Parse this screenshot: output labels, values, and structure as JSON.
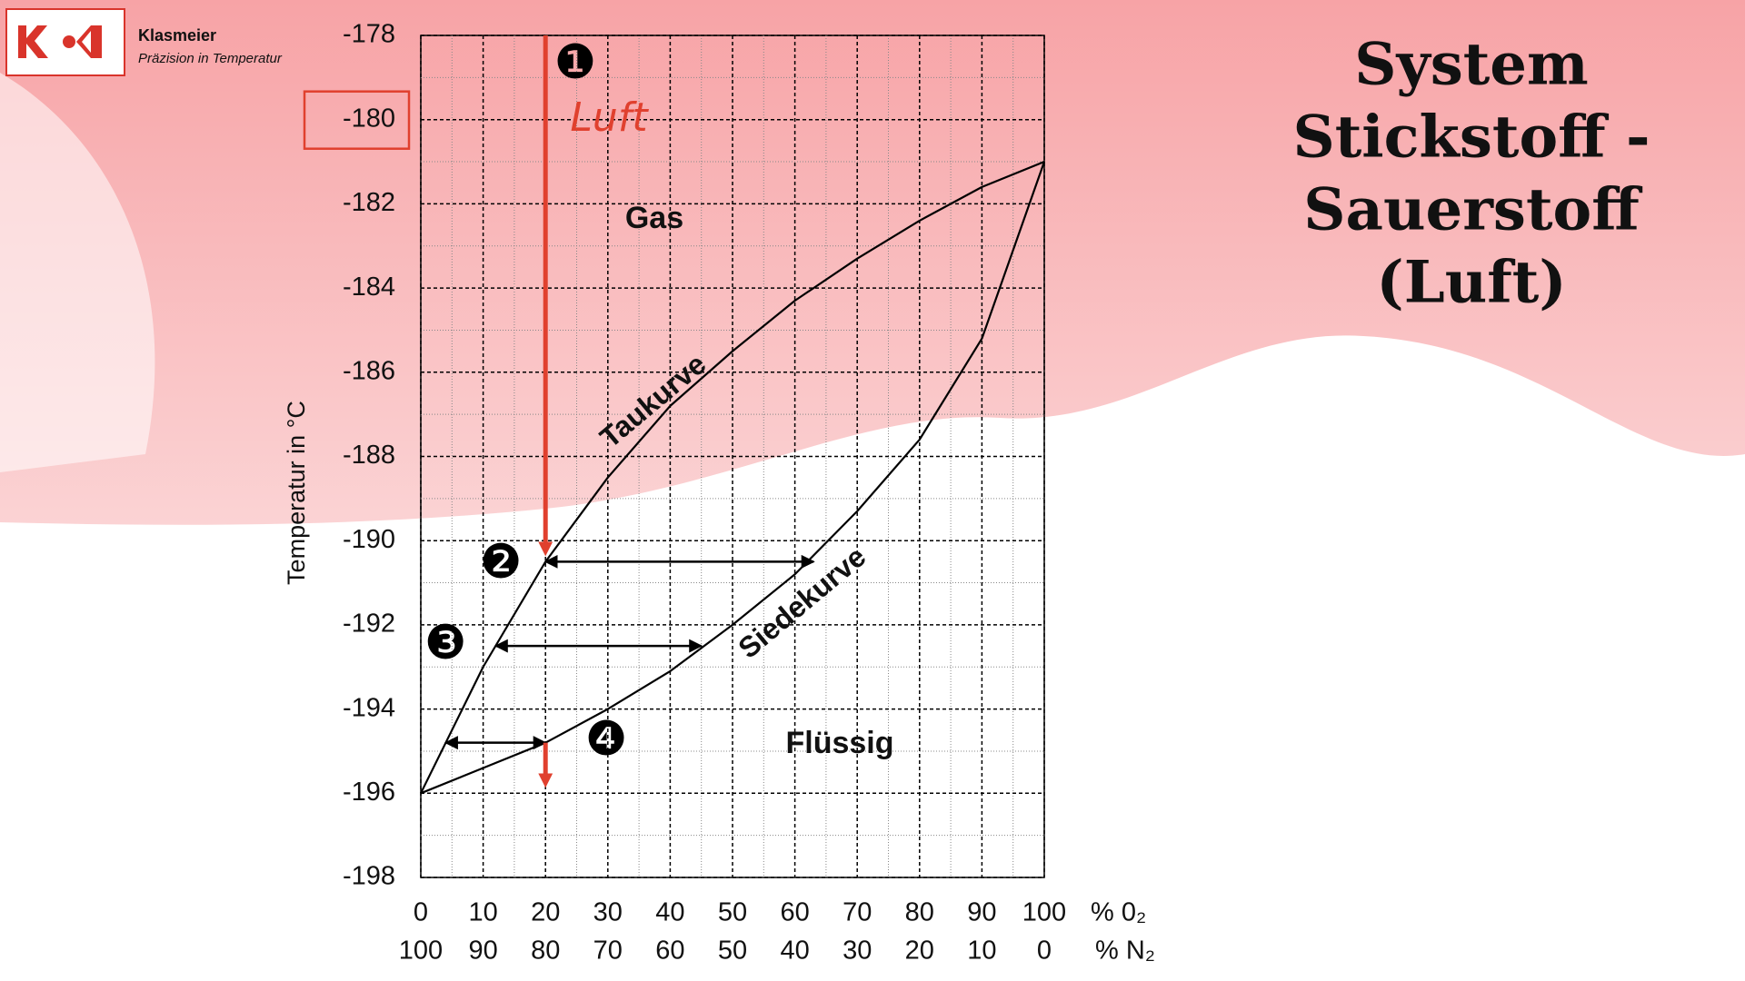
{
  "header": {
    "company": "Klasmeier",
    "tagline": "Präzision in Temperatur"
  },
  "chart_data": {
    "type": "line",
    "title": [
      "System",
      "Stickstoff -",
      "Sauerstoff",
      "(Luft)"
    ],
    "ylabel": "Temperatur in °C",
    "xunit": "% 0₂",
    "x2unit": "% N₂",
    "x": [
      0,
      10,
      20,
      30,
      40,
      50,
      60,
      70,
      80,
      90,
      100
    ],
    "series": [
      {
        "name": "Taukurve",
        "color": "#000000",
        "values": [
          -196,
          -193.0,
          -190.5,
          -188.5,
          -186.8,
          -185.5,
          -184.3,
          -183.3,
          -182.4,
          -181.6,
          -181
        ]
      },
      {
        "name": "Siedekurve",
        "color": "#000000",
        "values": [
          -196,
          -195.4,
          -194.8,
          -194.0,
          -193.1,
          -192.0,
          -190.8,
          -189.3,
          -187.6,
          -185.2,
          -181
        ]
      }
    ],
    "xlim": [
      0,
      100
    ],
    "ylim": [
      -178,
      -198
    ],
    "xticks": [
      0,
      10,
      20,
      30,
      40,
      50,
      60,
      70,
      80,
      90,
      100
    ],
    "x2ticks": [
      {
        "value": 0,
        "label": "100"
      },
      {
        "value": 10,
        "label": "90"
      },
      {
        "value": 20,
        "label": "80"
      },
      {
        "value": 30,
        "label": "70"
      },
      {
        "value": 40,
        "label": "60"
      },
      {
        "value": 50,
        "label": "50"
      },
      {
        "value": 60,
        "label": "40"
      },
      {
        "value": 70,
        "label": "30"
      },
      {
        "value": 80,
        "label": "20"
      },
      {
        "value": 90,
        "label": "10"
      },
      {
        "value": 100,
        "label": "0"
      }
    ],
    "xminorticks": [
      5,
      15,
      25,
      35,
      45,
      55,
      65,
      75,
      85,
      95
    ],
    "yticks": [
      -178,
      -180,
      -182,
      -184,
      -186,
      -188,
      -190,
      -192,
      -194,
      -196,
      -198
    ],
    "yminorticks": [
      -179,
      -181,
      -183,
      -185,
      -187,
      -189,
      -191,
      -193,
      -195,
      -197
    ],
    "grid": true,
    "highlight_ytick": 1,
    "tie_lines": [
      {
        "temperature": -190.5,
        "x_start": 20,
        "x_end": 63
      },
      {
        "temperature": -192.5,
        "x_start": 12,
        "x_end": 45
      },
      {
        "temperature": -194.8,
        "x_start": 4,
        "x_end": 20
      }
    ],
    "cooling_path": {
      "x": 20,
      "color": "#e0402e",
      "segments": [
        [
          -178,
          -190.5
        ],
        [
          -194.8,
          -196
        ]
      ]
    },
    "regions": [
      "Gas",
      "Flüssig"
    ],
    "path_label": "Luft",
    "markers": [
      "❶",
      "❷",
      "❸",
      "❹"
    ]
  }
}
